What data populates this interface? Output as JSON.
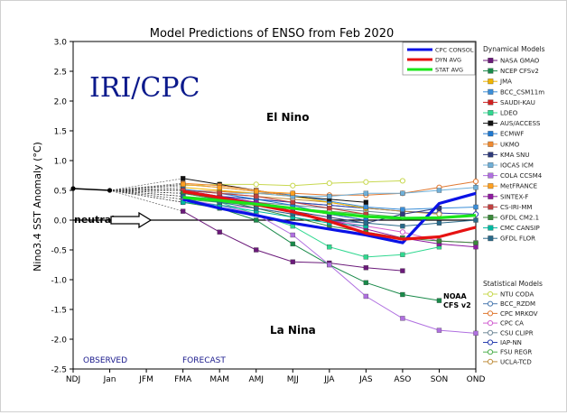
{
  "chart_data": {
    "type": "line",
    "title": "Model Predictions of ENSO from Feb 2020",
    "ylabel": "Nino3.4 SST Anomaly (°C)",
    "xlabel": "",
    "ylim": [
      -2.5,
      3.0
    ],
    "yticks": [
      "3.0",
      "2.5",
      "2.0",
      "1.5",
      "1.0",
      "0.5",
      "0.0",
      "-0.5",
      "-1.0",
      "-1.5",
      "-2.0",
      "-2.5"
    ],
    "categories": [
      "NDJ",
      "Jan",
      "JFM",
      "FMA",
      "MAM",
      "AMJ",
      "MJJ",
      "JJA",
      "JAS",
      "ASO",
      "SON",
      "OND"
    ],
    "annotations": {
      "iri_cpc": "IRI/CPC",
      "el_nino": "El Nino",
      "la_nina": "La Nina",
      "neutral": "neutral",
      "observed": "OBSERVED",
      "forecast": "FORECAST",
      "noaa_cfs": "NOAA",
      "noaa_cfs2": "CFS v2"
    },
    "observed": [
      0.53,
      0.5
    ],
    "consensus_series": [
      {
        "name": "CPC CONSOL",
        "color": "#0a12e6",
        "start": 3,
        "values": [
          0.35,
          0.2,
          0.08,
          -0.05,
          -0.15,
          -0.25,
          -0.38,
          0.28,
          0.45
        ]
      },
      {
        "name": "DYN AVG",
        "color": "#e61212",
        "start": 3,
        "values": [
          0.48,
          0.38,
          0.26,
          0.14,
          -0.02,
          -0.22,
          -0.32,
          -0.28,
          -0.12
        ]
      },
      {
        "name": "STAT AVG",
        "color": "#1ae61a",
        "start": 3,
        "values": [
          0.38,
          0.33,
          0.27,
          0.2,
          0.12,
          0.06,
          0.03,
          0.04,
          0.08
        ]
      }
    ],
    "dynamical_title": "Dynamical Models",
    "dynamical_models": [
      {
        "name": "NASA GMAO",
        "color": "#6b1a7a",
        "start": 3,
        "values": [
          0.15,
          -0.2,
          -0.5,
          -0.7,
          -0.72,
          -0.8,
          -0.85
        ]
      },
      {
        "name": "NCEP CFSv2",
        "color": "#1a8a4a",
        "start": 3,
        "values": [
          0.3,
          0.2,
          0.0,
          -0.4,
          -0.75,
          -1.05,
          -1.25,
          -1.35
        ]
      },
      {
        "name": "JMA",
        "color": "#f0b400",
        "start": 3,
        "values": [
          0.55,
          0.5,
          0.45,
          0.4,
          0.3,
          0.2
        ]
      },
      {
        "name": "BCC_CSM11m",
        "color": "#3b8ed8",
        "start": 3,
        "values": [
          0.6,
          0.55,
          0.48,
          0.42,
          0.32,
          0.22,
          0.18,
          0.2,
          0.22
        ]
      },
      {
        "name": "SAUDI-KAU",
        "color": "#d02020",
        "start": 3,
        "values": [
          0.5,
          0.4,
          0.3,
          0.2,
          0.1,
          0.0
        ]
      },
      {
        "name": "LDEO",
        "color": "#30d890",
        "start": 3,
        "values": [
          0.4,
          0.3,
          0.1,
          -0.1,
          -0.45,
          -0.62,
          -0.58,
          -0.45
        ]
      },
      {
        "name": "AUS/ACCESS",
        "color": "#111111",
        "start": 3,
        "values": [
          0.7,
          0.6,
          0.5,
          0.4,
          0.35,
          0.3
        ]
      },
      {
        "name": "ECMWF",
        "color": "#1e78d0",
        "start": 3,
        "values": [
          0.52,
          0.45,
          0.35,
          0.25,
          0.1,
          0.0
        ]
      },
      {
        "name": "UKMO",
        "color": "#f08a30",
        "start": 3,
        "values": [
          0.62,
          0.58,
          0.5,
          0.4
        ]
      },
      {
        "name": "KMA SNU",
        "color": "#2e3a7a",
        "start": 3,
        "values": [
          0.45,
          0.35,
          0.25,
          0.15,
          0.05,
          -0.05,
          0.1,
          0.2
        ]
      },
      {
        "name": "IOCAS ICM",
        "color": "#70b0d8",
        "start": 3,
        "values": [
          0.5,
          0.45,
          0.45,
          0.4,
          0.4,
          0.45,
          0.45,
          0.5,
          0.55
        ]
      },
      {
        "name": "COLA CCSM4",
        "color": "#b070e0",
        "start": 3,
        "values": [
          0.35,
          0.25,
          0.1,
          -0.25,
          -0.75,
          -1.28,
          -1.65,
          -1.85,
          -1.9
        ]
      },
      {
        "name": "MetFRANCE",
        "color": "#ffa020",
        "start": 3,
        "values": [
          0.6,
          0.55,
          0.48,
          0.45
        ]
      },
      {
        "name": "SINTEX-F",
        "color": "#8e1aa0",
        "start": 3,
        "values": [
          0.5,
          0.4,
          0.3,
          0.15,
          0.0,
          -0.15,
          -0.3,
          -0.4,
          -0.45
        ]
      },
      {
        "name": "CS-IRI-MM",
        "color": "#c04040",
        "start": 3,
        "values": [
          0.5,
          0.45,
          0.4,
          0.3,
          0.2,
          0.1
        ]
      },
      {
        "name": "GFDL CM2.1",
        "color": "#3a8a3a",
        "start": 3,
        "values": [
          0.45,
          0.35,
          0.2,
          0.05,
          -0.1,
          -0.2,
          -0.3,
          -0.35,
          -0.38
        ]
      },
      {
        "name": "CMC CANSIP",
        "color": "#00b8a0",
        "start": 3,
        "values": [
          0.3,
          0.25,
          0.15,
          0.05,
          -0.05,
          -0.1
        ]
      },
      {
        "name": "GFDL FLOR",
        "color": "#2a6a8a",
        "start": 3,
        "values": [
          0.4,
          0.3,
          0.2,
          0.1,
          0.0,
          -0.05,
          -0.1,
          -0.05,
          0.0
        ]
      }
    ],
    "statistical_title": "Statistical Models",
    "statistical_models": [
      {
        "name": "NTU CODA",
        "color": "#c8d850",
        "start": 3,
        "values": [
          0.58,
          0.6,
          0.6,
          0.58,
          0.62,
          0.64,
          0.66
        ]
      },
      {
        "name": "BCC_RZDM",
        "color": "#4a7ab0",
        "start": 3,
        "values": [
          0.45,
          0.4,
          0.35,
          0.3,
          0.25,
          0.2
        ]
      },
      {
        "name": "CPC MRKOV",
        "color": "#e07830",
        "start": 3,
        "values": [
          0.5,
          0.48,
          0.45,
          0.45,
          0.42,
          0.42,
          0.45,
          0.55,
          0.65
        ]
      },
      {
        "name": "CPC CA",
        "color": "#d060d0",
        "start": 3,
        "values": [
          0.3,
          0.25,
          0.2,
          0.1,
          0.0,
          -0.1,
          -0.2,
          -0.35,
          -0.38
        ]
      },
      {
        "name": "CSU CLIPR",
        "color": "#708898",
        "start": 3,
        "values": [
          0.4,
          0.35,
          0.3,
          0.25,
          0.2,
          0.15,
          0.1
        ]
      },
      {
        "name": "IAP-NN",
        "color": "#2a40b0",
        "start": 3,
        "values": [
          0.45,
          0.4,
          0.35,
          0.3,
          0.25,
          0.2,
          0.15,
          0.12,
          0.1
        ]
      },
      {
        "name": "FSU REGR",
        "color": "#50b050",
        "start": 3,
        "values": [
          0.35,
          0.3,
          0.25,
          0.2,
          0.15,
          0.1,
          0.05
        ]
      },
      {
        "name": "UCLA-TCD",
        "color": "#c09040",
        "start": 3,
        "values": [
          0.5,
          0.45,
          0.4,
          0.35,
          0.3,
          0.2,
          0.15,
          0.1
        ]
      }
    ]
  }
}
